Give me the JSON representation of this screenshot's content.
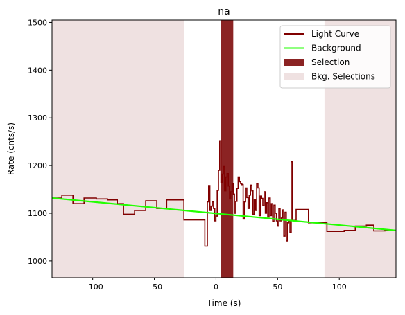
{
  "chart_data": {
    "type": "line",
    "title": "na",
    "xlabel": "Time (s)",
    "ylabel": "Rate (cnts/s)",
    "xlim": [
      -133,
      146
    ],
    "ylim": [
      965,
      1505
    ],
    "xticks": [
      -100,
      -50,
      0,
      50,
      100
    ],
    "xtick_labels": [
      "−100",
      "−50",
      "0",
      "50",
      "100"
    ],
    "yticks": [
      1000,
      1100,
      1200,
      1300,
      1400,
      1500
    ],
    "ytick_labels": [
      "1000",
      "1100",
      "1200",
      "1300",
      "1400",
      "1500"
    ],
    "grid": false,
    "legend_position": "top-right",
    "colors": {
      "light_curve": "#800000",
      "background": "#22ff00",
      "selection": "#8b2323",
      "bkg_selections": "#efe1e1"
    },
    "legend": [
      {
        "label": "Light Curve",
        "kind": "line",
        "color": "#800000"
      },
      {
        "label": "Background",
        "kind": "line",
        "color": "#22ff00"
      },
      {
        "label": "Selection",
        "kind": "patch",
        "color": "#8b2323"
      },
      {
        "label": "Bkg. Selections",
        "kind": "patch",
        "color": "#efe1e1"
      }
    ],
    "bkg_selections": [
      [
        -133,
        -26
      ],
      [
        88,
        146
      ]
    ],
    "selection": [
      4,
      14
    ],
    "background_line": {
      "x": [
        -133,
        146
      ],
      "y": [
        1132,
        1064
      ]
    },
    "light_curve": {
      "steps": [
        [
          -133,
          1132
        ],
        [
          -125,
          1138
        ],
        [
          -116,
          1120
        ],
        [
          -107,
          1132
        ],
        [
          -97,
          1130
        ],
        [
          -88,
          1128
        ],
        [
          -80,
          1120
        ],
        [
          -75,
          1098
        ],
        [
          -66,
          1106
        ],
        [
          -57,
          1126
        ],
        [
          -48,
          1110
        ],
        [
          -40,
          1128
        ],
        [
          -26,
          1086
        ],
        [
          -9,
          1031
        ],
        [
          -7,
          1124
        ],
        [
          -6,
          1158
        ],
        [
          -5,
          1106
        ],
        [
          -4,
          1115
        ],
        [
          -3,
          1124
        ],
        [
          -2,
          1110
        ],
        [
          -1,
          1084
        ],
        [
          0,
          1094
        ],
        [
          1,
          1148
        ],
        [
          2,
          1190
        ],
        [
          3,
          1252
        ],
        [
          4,
          1165
        ],
        [
          5,
          1182
        ],
        [
          6,
          1198
        ],
        [
          7,
          1147
        ],
        [
          8,
          1176
        ],
        [
          9,
          1183
        ],
        [
          10,
          1157
        ],
        [
          11,
          1130
        ],
        [
          12,
          1145
        ],
        [
          13,
          1162
        ],
        [
          14,
          1140
        ],
        [
          15,
          1100
        ],
        [
          16,
          1125
        ],
        [
          17,
          1152
        ],
        [
          18,
          1176
        ],
        [
          19,
          1166
        ],
        [
          20,
          1162
        ],
        [
          21,
          1160
        ],
        [
          22,
          1088
        ],
        [
          23,
          1124
        ],
        [
          24,
          1153
        ],
        [
          25,
          1133
        ],
        [
          26,
          1110
        ],
        [
          27,
          1138
        ],
        [
          28,
          1159
        ],
        [
          29,
          1147
        ],
        [
          30,
          1098
        ],
        [
          31,
          1128
        ],
        [
          32,
          1106
        ],
        [
          33,
          1162
        ],
        [
          34,
          1153
        ],
        [
          35,
          1095
        ],
        [
          36,
          1136
        ],
        [
          37,
          1131
        ],
        [
          38,
          1116
        ],
        [
          39,
          1145
        ],
        [
          40,
          1100
        ],
        [
          41,
          1122
        ],
        [
          42,
          1092
        ],
        [
          43,
          1132
        ],
        [
          44,
          1095
        ],
        [
          45,
          1120
        ],
        [
          46,
          1083
        ],
        [
          47,
          1117
        ],
        [
          48,
          1100
        ],
        [
          49,
          1084
        ],
        [
          50,
          1073
        ],
        [
          51,
          1110
        ],
        [
          52,
          1084
        ],
        [
          53,
          1090
        ],
        [
          54,
          1107
        ],
        [
          55,
          1052
        ],
        [
          56,
          1102
        ],
        [
          57,
          1042
        ],
        [
          58,
          1080
        ],
        [
          59,
          1083
        ],
        [
          60,
          1060
        ],
        [
          61,
          1208
        ],
        [
          62,
          1085
        ],
        [
          65,
          1108
        ],
        [
          75,
          1080
        ],
        [
          90,
          1062
        ],
        [
          104,
          1064
        ],
        [
          113,
          1073
        ],
        [
          122,
          1075
        ],
        [
          128,
          1063
        ],
        [
          137,
          1064
        ],
        [
          146,
          1064
        ]
      ]
    }
  }
}
